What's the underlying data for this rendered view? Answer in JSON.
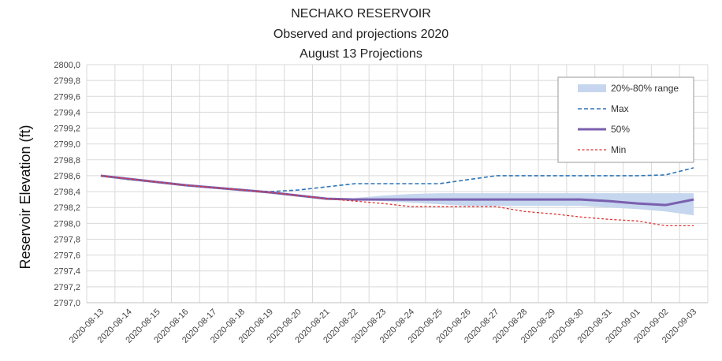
{
  "chart_data": {
    "type": "line",
    "title": [
      "NECHAKO RESERVOIR",
      "Observed and projections 2020",
      "August 13 Projections"
    ],
    "ylabel": "Reservoir Elevation (ft)",
    "xlabel": "",
    "ylim": [
      2797.0,
      2800.0
    ],
    "yticks": [
      "2797,0",
      "2797,2",
      "2797,4",
      "2797,6",
      "2797,8",
      "2798,0",
      "2798,2",
      "2798,4",
      "2798,6",
      "2798,8",
      "2799,0",
      "2799,2",
      "2799,4",
      "2799,6",
      "2799,8",
      "2800,0"
    ],
    "categories": [
      "2020-08-13",
      "2020-08-14",
      "2020-08-15",
      "2020-08-16",
      "2020-08-17",
      "2020-08-18",
      "2020-08-19",
      "2020-08-20",
      "2020-08-21",
      "2020-08-22",
      "2020-08-23",
      "2020-08-24",
      "2020-08-25",
      "2020-08-26",
      "2020-08-27",
      "2020-08-28",
      "2020-08-29",
      "2020-08-30",
      "2020-08-31",
      "2020-09-01",
      "2020-09-02",
      "2020-09-03"
    ],
    "grid": true,
    "legend_position": "top-right",
    "series": [
      {
        "name": "20%-80% range",
        "kind": "band",
        "color": "#c5d6ee",
        "x": [
          "2020-08-22",
          "2020-08-23",
          "2020-08-24",
          "2020-08-25",
          "2020-08-26",
          "2020-08-27",
          "2020-08-28",
          "2020-08-29",
          "2020-08-30",
          "2020-08-31",
          "2020-09-01",
          "2020-09-02",
          "2020-09-03"
        ],
        "lower": [
          2798.3,
          2798.28,
          2798.26,
          2798.24,
          2798.22,
          2798.22,
          2798.22,
          2798.22,
          2798.22,
          2798.2,
          2798.18,
          2798.15,
          2798.1
        ],
        "upper": [
          2798.32,
          2798.35,
          2798.37,
          2798.38,
          2798.38,
          2798.38,
          2798.38,
          2798.38,
          2798.38,
          2798.38,
          2798.38,
          2798.38,
          2798.38
        ]
      },
      {
        "name": "Max",
        "kind": "line",
        "dash": "dashed",
        "color": "#2e75b6",
        "values": [
          2798.6,
          2798.55,
          2798.52,
          2798.48,
          2798.45,
          2798.42,
          2798.4,
          2798.42,
          2798.46,
          2798.5,
          2798.5,
          2798.5,
          2798.5,
          2798.55,
          2798.6,
          2798.6,
          2798.6,
          2798.6,
          2798.6,
          2798.6,
          2798.61,
          2798.7
        ]
      },
      {
        "name": "50%",
        "kind": "line",
        "dash": "solid",
        "color": "#7b5fae",
        "values": [
          2798.6,
          2798.56,
          2798.52,
          2798.48,
          2798.45,
          2798.42,
          2798.39,
          2798.35,
          2798.31,
          2798.3,
          2798.3,
          2798.3,
          2798.3,
          2798.3,
          2798.3,
          2798.3,
          2798.3,
          2798.3,
          2798.28,
          2798.25,
          2798.23,
          2798.3
        ]
      },
      {
        "name": "Min",
        "kind": "line",
        "dash": "dotted",
        "color": "#e03030",
        "values": [
          2798.6,
          2798.56,
          2798.52,
          2798.48,
          2798.45,
          2798.42,
          2798.39,
          2798.35,
          2798.31,
          2798.28,
          2798.25,
          2798.21,
          2798.21,
          2798.21,
          2798.21,
          2798.15,
          2798.12,
          2798.08,
          2798.05,
          2798.03,
          2797.97,
          2797.97
        ]
      }
    ]
  }
}
